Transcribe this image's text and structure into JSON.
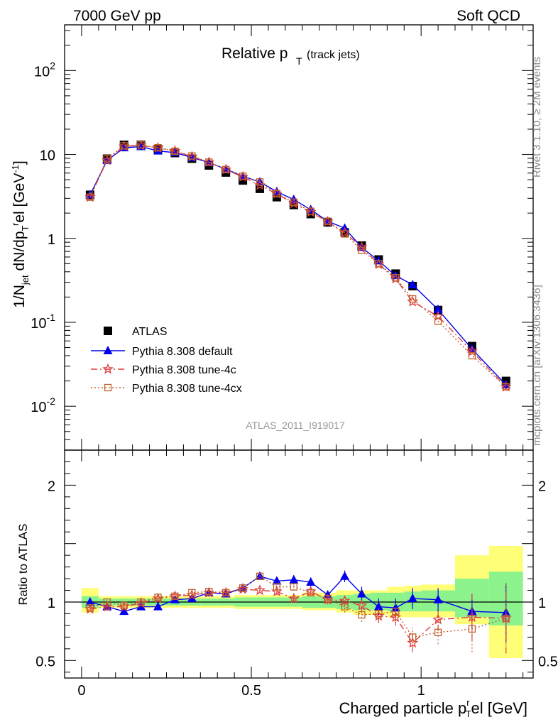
{
  "header": {
    "left": "7000 GeV pp",
    "right": "Soft QCD"
  },
  "side_labels": {
    "top": "Rivet 3.1.10, ≥ 2M events",
    "bottom": "mcplots.cern.ch [arXiv:1306.3436]"
  },
  "chart_data": [
    {
      "type": "scatter",
      "panel": "main",
      "title_main": "Relative p",
      "title_sub": "T",
      "title_note": "(track jets)",
      "ylabel": "1/N",
      "ylabel_parts": [
        "1/N",
        "jet",
        " dN/dp",
        "T",
        "r",
        "el [GeV",
        "-1",
        "]"
      ],
      "yscale": "log",
      "ylim": [
        0.003,
        350
      ],
      "xlim": [
        -0.05,
        1.33
      ],
      "y_ticks": [
        {
          "v": 0.01,
          "base": "10",
          "exp": "-2"
        },
        {
          "v": 0.1,
          "base": "10",
          "exp": "-1"
        },
        {
          "v": 1,
          "base": "1",
          "exp": ""
        },
        {
          "v": 10,
          "base": "10",
          "exp": ""
        },
        {
          "v": 100,
          "base": "10",
          "exp": "2"
        }
      ],
      "watermark": "ATLAS_2011_I919017",
      "x": [
        0.025,
        0.075,
        0.125,
        0.175,
        0.225,
        0.275,
        0.325,
        0.375,
        0.425,
        0.475,
        0.525,
        0.575,
        0.625,
        0.675,
        0.725,
        0.775,
        0.825,
        0.875,
        0.925,
        0.975,
        1.05,
        1.15,
        1.25
      ],
      "series": [
        {
          "name": "ATLAS",
          "color": "#000000",
          "values": [
            3.3,
            8.9,
            13.0,
            13.0,
            11.6,
            10.4,
            8.9,
            7.4,
            6.1,
            4.9,
            3.9,
            3.1,
            2.5,
            1.95,
            1.55,
            1.18,
            0.82,
            0.56,
            0.38,
            0.27,
            0.14,
            0.052,
            0.02
          ]
        },
        {
          "name": "Pythia 8.308 default",
          "color": "#0000ee",
          "values": [
            3.3,
            8.5,
            12.0,
            12.4,
            11.0,
            10.5,
            9.2,
            8.0,
            6.7,
            5.5,
            4.7,
            3.6,
            2.9,
            2.2,
            1.6,
            1.32,
            0.78,
            0.54,
            0.36,
            0.28,
            0.142,
            0.048,
            0.018
          ]
        },
        {
          "name": "Pythia 8.308 tune-4c",
          "color": "#e03c3c",
          "values": [
            3.1,
            8.5,
            12.5,
            12.8,
            12.0,
            11.0,
            9.4,
            8.1,
            6.6,
            5.4,
            4.3,
            3.4,
            2.6,
            2.05,
            1.58,
            1.17,
            0.79,
            0.49,
            0.33,
            0.176,
            0.118,
            0.045,
            0.017
          ]
        },
        {
          "name": "Pythia 8.308 tune-4cx",
          "color": "#c0602a",
          "values": [
            3.1,
            8.9,
            12.7,
            13.0,
            12.0,
            10.9,
            9.6,
            8.1,
            6.6,
            5.5,
            4.7,
            3.4,
            2.7,
            2.1,
            1.6,
            1.13,
            0.72,
            0.5,
            0.34,
            0.19,
            0.103,
            0.04,
            0.017
          ]
        }
      ]
    },
    {
      "type": "scatter",
      "panel": "ratio",
      "ylabel": "Ratio to ATLAS",
      "xlabel": "Charged particle p",
      "xlabel_parts": [
        "Charged particle p",
        "r",
        "T",
        "el [GeV]"
      ],
      "ylim": [
        0.35,
        2.3
      ],
      "y_ticks": [
        0.5,
        1,
        2
      ],
      "x_ticks": [
        0,
        0.5,
        1
      ],
      "x": [
        0.025,
        0.075,
        0.125,
        0.175,
        0.225,
        0.275,
        0.325,
        0.375,
        0.425,
        0.475,
        0.525,
        0.575,
        0.625,
        0.675,
        0.725,
        0.775,
        0.825,
        0.875,
        0.925,
        0.975,
        1.05,
        1.15,
        1.25
      ],
      "bin_edges": [
        0,
        0.05,
        0.1,
        0.15,
        0.2,
        0.25,
        0.3,
        0.35,
        0.4,
        0.45,
        0.5,
        0.55,
        0.6,
        0.65,
        0.7,
        0.75,
        0.8,
        0.85,
        0.9,
        0.95,
        1.0,
        1.1,
        1.2,
        1.3
      ],
      "band_green": [
        [
          0.95,
          1.05
        ],
        [
          0.97,
          1.03
        ],
        [
          0.97,
          1.03
        ],
        [
          0.97,
          1.03
        ],
        [
          0.97,
          1.03
        ],
        [
          0.97,
          1.03
        ],
        [
          0.97,
          1.03
        ],
        [
          0.97,
          1.03
        ],
        [
          0.97,
          1.03
        ],
        [
          0.96,
          1.04
        ],
        [
          0.96,
          1.04
        ],
        [
          0.96,
          1.04
        ],
        [
          0.96,
          1.04
        ],
        [
          0.95,
          1.05
        ],
        [
          0.95,
          1.05
        ],
        [
          0.94,
          1.06
        ],
        [
          0.93,
          1.07
        ],
        [
          0.93,
          1.08
        ],
        [
          0.92,
          1.08
        ],
        [
          0.92,
          1.09
        ],
        [
          0.92,
          1.1
        ],
        [
          0.87,
          1.2
        ],
        [
          0.8,
          1.26
        ]
      ],
      "band_yellow": [
        [
          0.91,
          1.12
        ],
        [
          0.95,
          1.05
        ],
        [
          0.95,
          1.05
        ],
        [
          0.95,
          1.05
        ],
        [
          0.95,
          1.05
        ],
        [
          0.95,
          1.05
        ],
        [
          0.95,
          1.05
        ],
        [
          0.95,
          1.05
        ],
        [
          0.95,
          1.05
        ],
        [
          0.94,
          1.06
        ],
        [
          0.94,
          1.06
        ],
        [
          0.94,
          1.06
        ],
        [
          0.94,
          1.06
        ],
        [
          0.93,
          1.08
        ],
        [
          0.93,
          1.08
        ],
        [
          0.91,
          1.1
        ],
        [
          0.89,
          1.1
        ],
        [
          0.89,
          1.1
        ],
        [
          0.87,
          1.13
        ],
        [
          0.87,
          1.14
        ],
        [
          0.87,
          1.15
        ],
        [
          0.81,
          1.4
        ],
        [
          0.52,
          1.48
        ]
      ],
      "series": [
        {
          "name": "Pythia 8.308 default",
          "color": "#0000ee",
          "values": [
            1.0,
            0.96,
            0.92,
            0.96,
            0.96,
            1.02,
            1.03,
            1.08,
            1.07,
            1.12,
            1.22,
            1.18,
            1.19,
            1.17,
            1.06,
            1.22,
            1.07,
            0.96,
            0.95,
            1.03,
            1.02,
            0.92,
            0.91
          ],
          "err": [
            0.03,
            0.02,
            0.02,
            0.02,
            0.02,
            0.02,
            0.02,
            0.02,
            0.02,
            0.02,
            0.03,
            0.03,
            0.04,
            0.04,
            0.04,
            0.05,
            0.06,
            0.07,
            0.08,
            0.09,
            0.1,
            0.15,
            0.25
          ]
        },
        {
          "name": "Pythia 8.308 tune-4c",
          "color": "#e03c3c",
          "values": [
            0.94,
            0.96,
            0.96,
            0.99,
            1.03,
            1.05,
            1.06,
            1.08,
            1.08,
            1.11,
            1.1,
            1.09,
            1.03,
            1.09,
            1.02,
            1.01,
            0.97,
            0.88,
            0.87,
            0.65,
            0.85,
            0.87,
            0.86
          ],
          "err": [
            0.02,
            0.02,
            0.02,
            0.02,
            0.02,
            0.02,
            0.02,
            0.02,
            0.02,
            0.02,
            0.02,
            0.03,
            0.03,
            0.03,
            0.04,
            0.05,
            0.06,
            0.06,
            0.07,
            0.08,
            0.1,
            0.2,
            0.3
          ]
        },
        {
          "name": "Pythia 8.308 tune-4cx",
          "color": "#c0602a",
          "values": [
            0.95,
            1.0,
            0.97,
            1.0,
            1.04,
            1.05,
            1.08,
            1.09,
            1.08,
            1.12,
            1.22,
            1.13,
            1.13,
            1.08,
            1.03,
            0.96,
            0.89,
            0.9,
            0.92,
            0.7,
            0.74,
            0.77,
            0.86
          ],
          "err": [
            0.02,
            0.02,
            0.02,
            0.02,
            0.02,
            0.02,
            0.02,
            0.02,
            0.02,
            0.02,
            0.03,
            0.03,
            0.03,
            0.03,
            0.04,
            0.05,
            0.06,
            0.06,
            0.07,
            0.08,
            0.1,
            0.2,
            0.3
          ]
        }
      ]
    }
  ]
}
